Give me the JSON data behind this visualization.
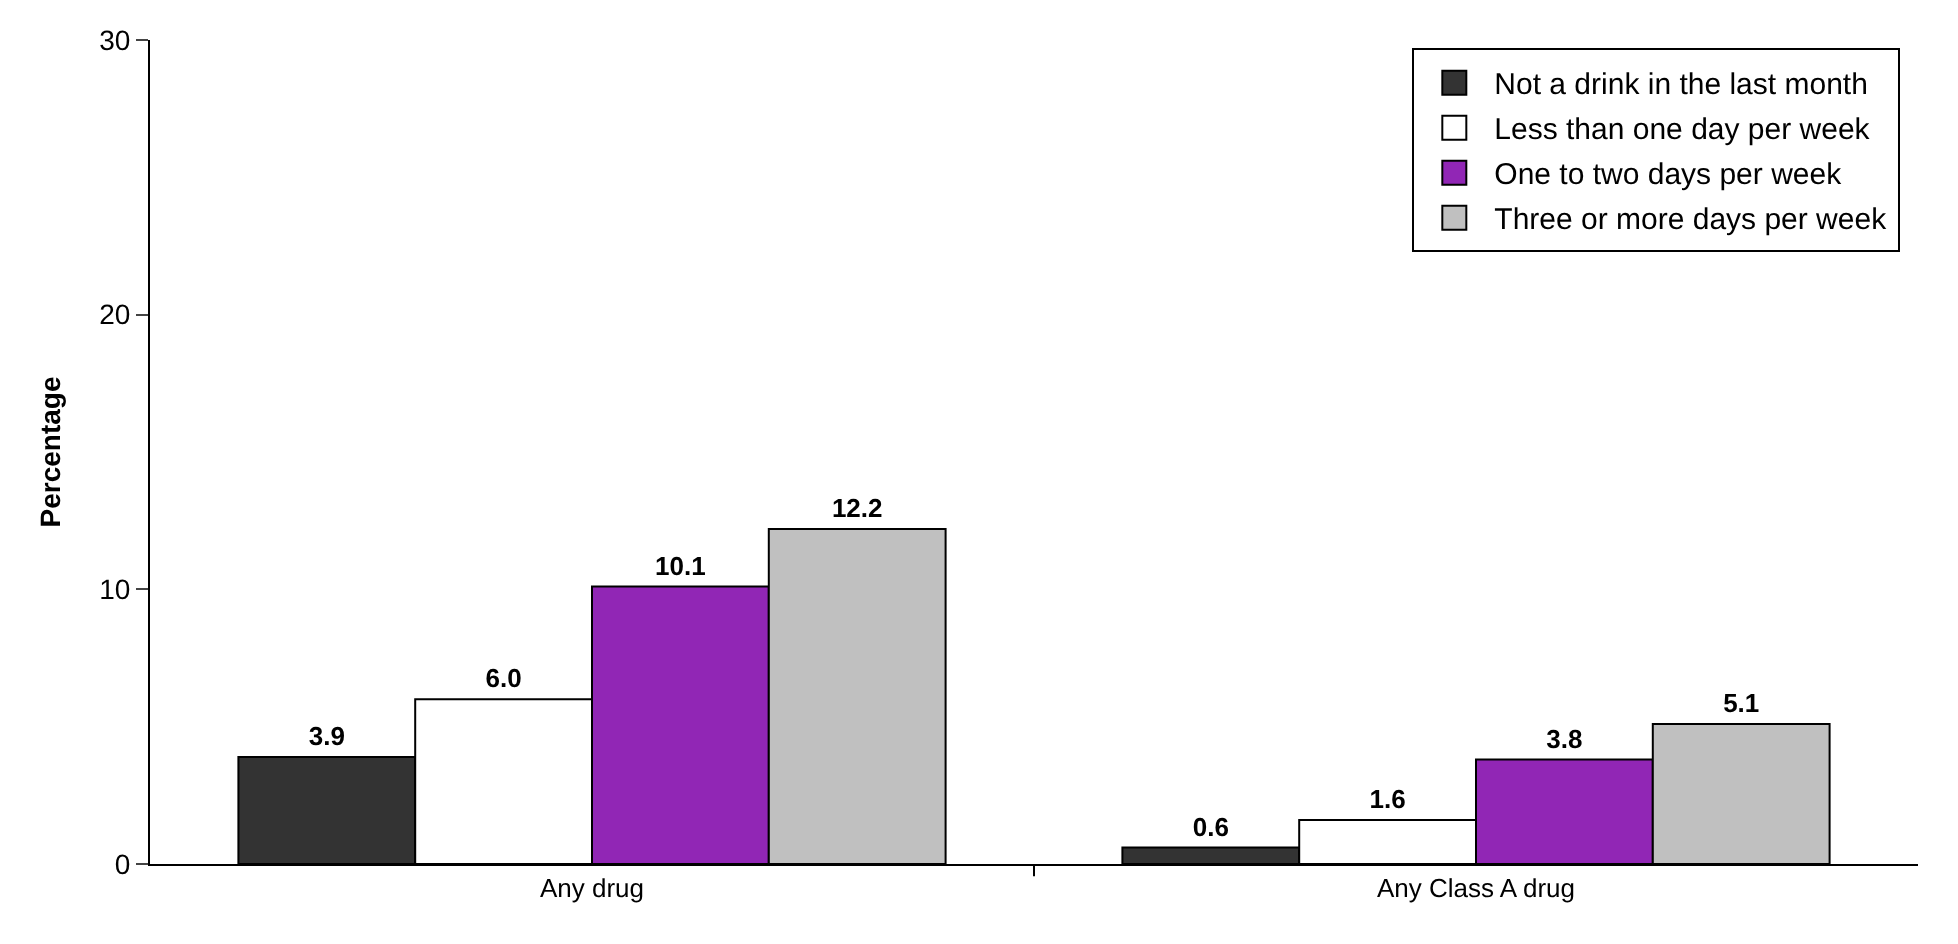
{
  "chart_data": {
    "type": "bar",
    "ylabel": "Percentage",
    "categories": [
      "Any drug",
      "Any Class A drug"
    ],
    "series": [
      {
        "name": "Not a drink in the last month",
        "color": "#333333",
        "values": [
          3.9,
          0.6
        ]
      },
      {
        "name": "Less than one day per week",
        "color": "#ffffff",
        "values": [
          6.0,
          1.6
        ]
      },
      {
        "name": "One to two days per week",
        "color": "#9126b5",
        "values": [
          10.1,
          3.8
        ]
      },
      {
        "name": "Three or more days per week",
        "color": "#c0c0c0",
        "values": [
          12.2,
          5.1
        ]
      }
    ],
    "value_labels": [
      [
        "3.9",
        "0.6"
      ],
      [
        "6.0",
        "1.6"
      ],
      [
        "10.1",
        "3.8"
      ],
      [
        "12.2",
        "5.1"
      ]
    ],
    "ylim": [
      0,
      30
    ],
    "yticks": [
      0,
      10,
      20,
      30
    ],
    "legend": "top right"
  }
}
